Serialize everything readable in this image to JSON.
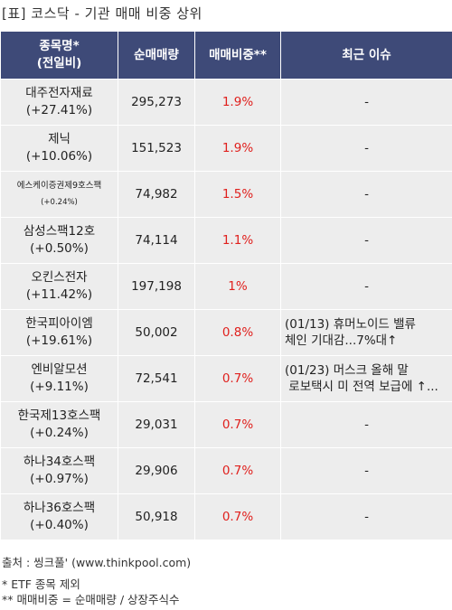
{
  "title": "[표] 코스닥 - 기관 매매 비중 상위",
  "headers": {
    "name_line1": "종목명*",
    "name_line2": "(전일비)",
    "net_buy": "순매매량",
    "ratio": "매매비중**",
    "issue": "최근 이슈"
  },
  "rows": [
    {
      "name": "대주전자재료",
      "change": "(+27.41%)",
      "net": "295,273",
      "ratio": "1.9%",
      "issue1": "-",
      "issue2": ""
    },
    {
      "name": "제닉",
      "change": "(+10.06%)",
      "net": "151,523",
      "ratio": "1.9%",
      "issue1": "-",
      "issue2": ""
    },
    {
      "name": "에스케이증권제9호스팩",
      "change": "(+0.24%)",
      "net": "74,982",
      "ratio": "1.5%",
      "issue1": "-",
      "issue2": ""
    },
    {
      "name": "삼성스팩12호",
      "change": "(+0.50%)",
      "net": "74,114",
      "ratio": "1.1%",
      "issue1": "-",
      "issue2": ""
    },
    {
      "name": "오킨스전자",
      "change": "(+11.42%)",
      "net": "197,198",
      "ratio": "1%",
      "issue1": "-",
      "issue2": ""
    },
    {
      "name": "한국피아이엠",
      "change": "(+19.61%)",
      "net": "50,002",
      "ratio": "0.8%",
      "issue1": "(01/13) 휴머노이드 밸류",
      "issue2": "체인 기대감...7%대↑"
    },
    {
      "name": "엔비알모션",
      "change": "(+9.11%)",
      "net": "72,541",
      "ratio": "0.7%",
      "issue1": "(01/23) 머스크 올해 말",
      "issue2": " 로보택시 미 전역 보급에 ↑..."
    },
    {
      "name": "한국제13호스팩",
      "change": "(+0.24%)",
      "net": "29,031",
      "ratio": "0.7%",
      "issue1": "-",
      "issue2": ""
    },
    {
      "name": "하나34호스팩",
      "change": "(+0.97%)",
      "net": "29,906",
      "ratio": "0.7%",
      "issue1": "-",
      "issue2": ""
    },
    {
      "name": "하나36호스팩",
      "change": "(+0.40%)",
      "net": "50,918",
      "ratio": "0.7%",
      "issue1": "-",
      "issue2": ""
    }
  ],
  "footer": {
    "source": "출처 : 씽크풀' (www.thinkpool.com)",
    "note1": "* ETF 종목 제외",
    "note2": "** 매매비중 = 순매매량 / 상장주식수"
  }
}
